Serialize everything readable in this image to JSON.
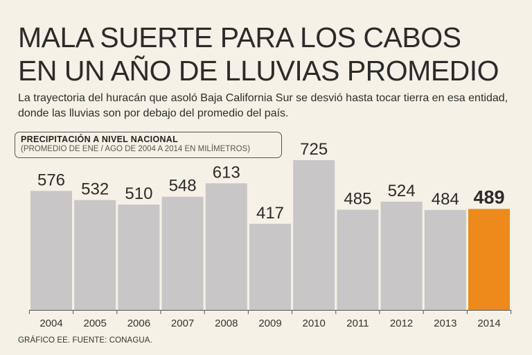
{
  "header": {
    "title_line1": "MALA SUERTE PARA LOS CABOS",
    "title_line2": "EN UN AÑO DE LLUVIAS PROMEDIO",
    "subtitle": "La trayectoria del huracán que asoló Baja California Sur se desvió hasta tocar tierra en esa entidad, donde las lluvias son por debajo del promedio del país."
  },
  "chart_data": {
    "type": "bar",
    "title": "PRECIPITACIÓN A NIVEL NACIONAL",
    "subtitle": "(PROMEDIO DE ENE / AGO DE 2004 A 2014 EN MILÍMETROS)",
    "categories": [
      "2004",
      "2005",
      "2006",
      "2007",
      "2008",
      "2009",
      "2010",
      "2011",
      "2012",
      "2013",
      "2014"
    ],
    "values": [
      576,
      532,
      510,
      548,
      613,
      417,
      725,
      485,
      524,
      484,
      489
    ],
    "highlight_index": 10,
    "colors": {
      "bar": "#c8c6c7",
      "highlight": "#ee8a1c",
      "axis": "#555555"
    },
    "ylim": [
      0,
      725
    ],
    "xlabel": "",
    "ylabel": ""
  },
  "footer": {
    "source": "GRÁFICO EE. FUENTE: CONAGUA."
  }
}
